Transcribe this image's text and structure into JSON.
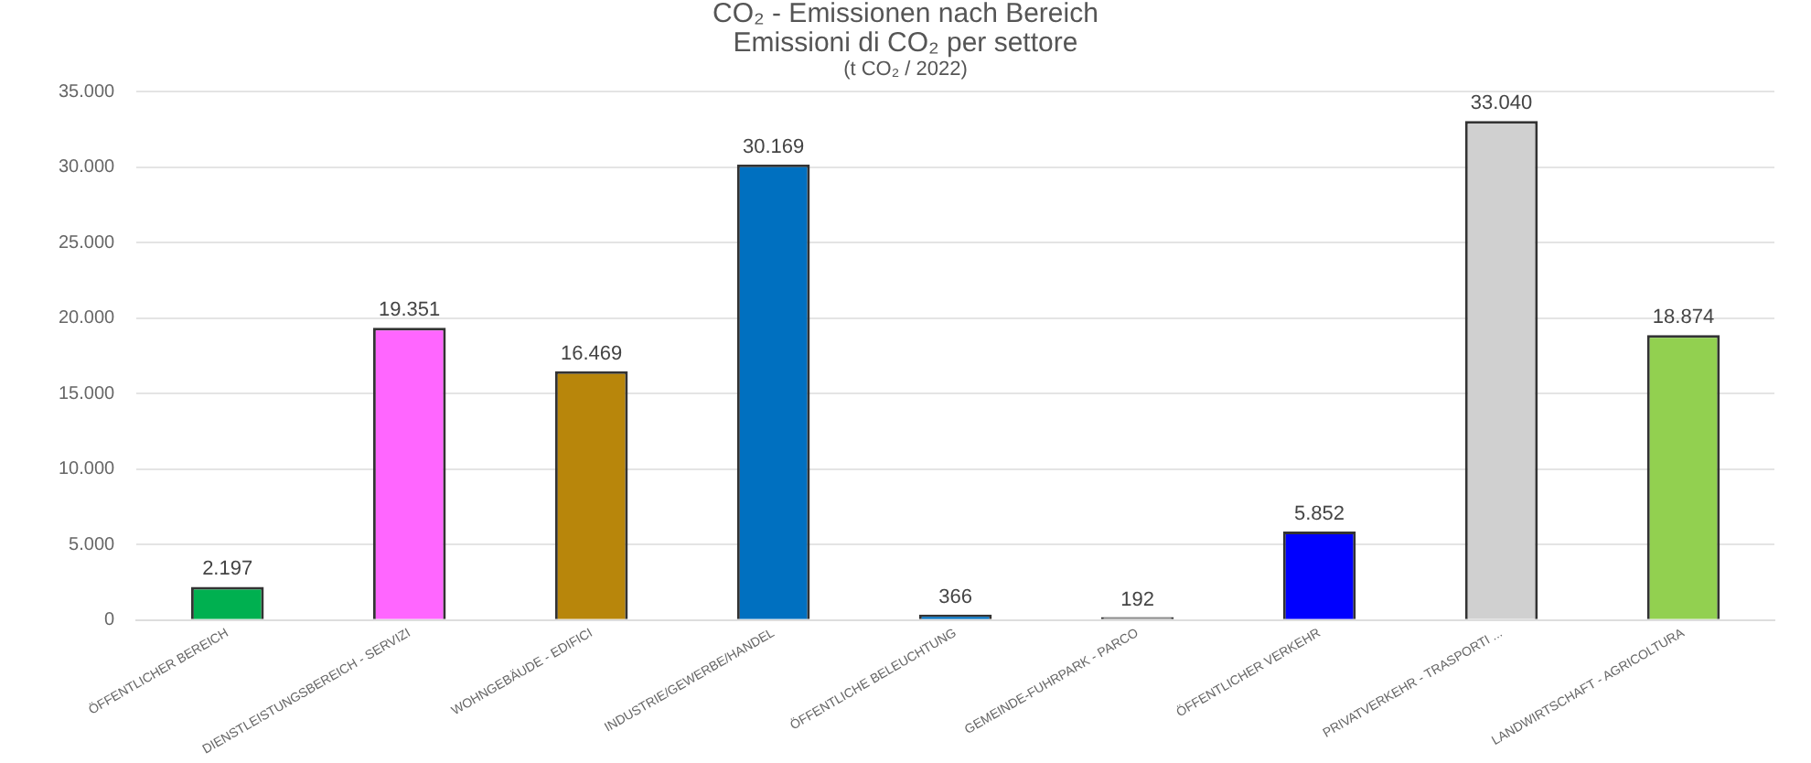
{
  "chart_data": {
    "type": "bar",
    "title": "CO₂ - Emissionen nach Bereich",
    "subtitle": "Emissioni di CO₂  per settore",
    "annotations": [
      "(t CO₂ / 2022)"
    ],
    "categories": [
      "ÖFFENTLICHER BEREICH",
      "DIENSTLEISTUNGSBEREICH - SERVIZI",
      "WOHNGEBÄUDE - EDIFICI",
      "INDUSTRIE/GEWERBE/HANDEL",
      "ÖFFENTLICHE BELEUCHTUNG",
      "GEMEINDE-FUHRPARK - PARCO",
      "ÖFFENTLICHER VERKEHR",
      "PRIVATVERKEHR - TRASPORTI ...",
      "LANDWIRTSCHAFT - AGRICOLTURA"
    ],
    "values": [
      2197,
      19351,
      16469,
      30169,
      366,
      192,
      5852,
      33040,
      18874
    ],
    "colors": [
      "#00b050",
      "#ff66ff",
      "#b8860b",
      "#0070c0",
      "#0070c0",
      "#7f7f7f",
      "#0000ff",
      "#d0d0d0",
      "#92d050"
    ],
    "value_labels": [
      "2.197",
      "19.351",
      "16.469",
      "30.169",
      "366",
      "192",
      "5.852",
      "33.040",
      "18.874"
    ],
    "ylim": [
      0,
      35000
    ],
    "yticks": [
      0,
      {
        "value": 5000,
        "label": "5.000"
      },
      {
        "value": 10000,
        "label": "10.000"
      },
      {
        "value": 15000,
        "label": "15.000"
      },
      {
        "value": 20000,
        "label": "20.000"
      },
      {
        "value": 25000,
        "label": "25.000"
      },
      {
        "value": 30000,
        "label": "30.000"
      },
      {
        "value": 35000,
        "label": "35.000"
      }
    ],
    "grid": "y",
    "legend": false
  }
}
